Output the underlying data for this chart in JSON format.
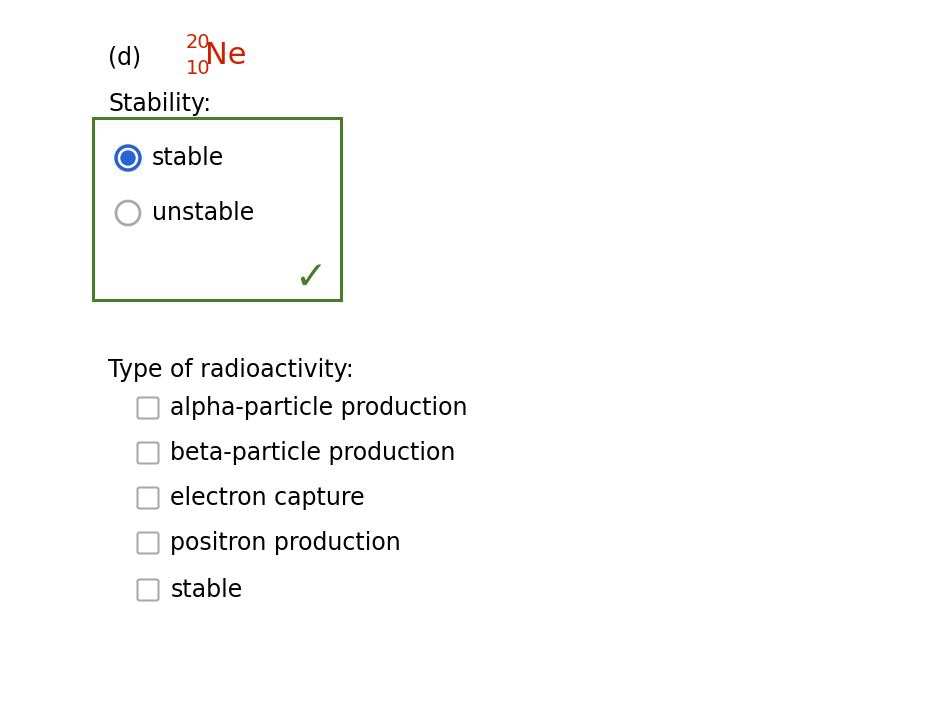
{
  "background_color": "#ffffff",
  "label_d": "(d)",
  "nuclide_mass": "20",
  "nuclide_atomic": "10",
  "nuclide_symbol": "Ne",
  "nuclide_color": "#cc2200",
  "stability_label": "Stability:",
  "radio_options": [
    "stable",
    "unstable"
  ],
  "selected_radio": 0,
  "box_color": "#4a7c29",
  "radio_selected_color": "#2962d4",
  "radio_unselected_color": "#aaaaaa",
  "checkmark_color": "#4a7c29",
  "radioactivity_label": "Type of radioactivity:",
  "checkbox_options": [
    "alpha-particle production",
    "beta-particle production",
    "electron capture",
    "positron production",
    "stable"
  ],
  "checkbox_color": "#aaaaaa",
  "font_size_main": 17,
  "font_size_nuclide_symbol": 22,
  "font_size_superscript": 14
}
